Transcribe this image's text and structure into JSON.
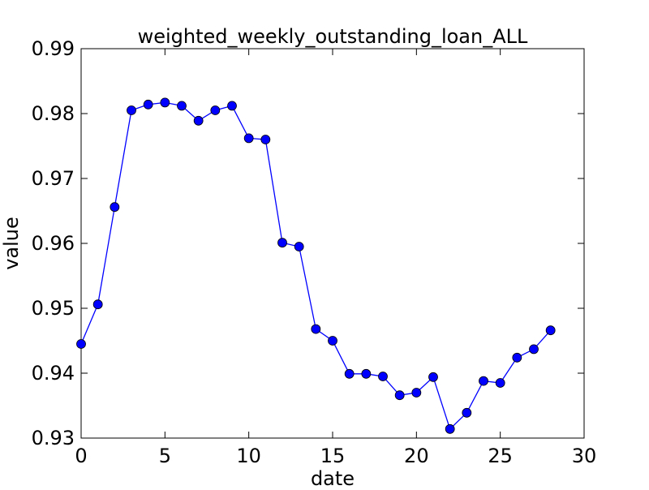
{
  "chart_data": {
    "type": "line",
    "title": "weighted_weekly_outstanding_loan_ALL",
    "xlabel": "date",
    "ylabel": "value",
    "xlim": [
      0,
      30
    ],
    "ylim": [
      0.93,
      0.99
    ],
    "xticks": [
      0,
      5,
      10,
      15,
      20,
      25,
      30
    ],
    "yticks": [
      0.93,
      0.94,
      0.95,
      0.96,
      0.97,
      0.98,
      0.99
    ],
    "xtick_labels": [
      "0",
      "5",
      "10",
      "15",
      "20",
      "25",
      "30"
    ],
    "ytick_labels": [
      "0.93",
      "0.94",
      "0.95",
      "0.96",
      "0.97",
      "0.98",
      "0.99"
    ],
    "grid": false,
    "legend": "none",
    "line_color": "#0000ff",
    "marker_color": "#0000ff",
    "series": [
      {
        "x": [
          0,
          1,
          2,
          3,
          4,
          5,
          6,
          7,
          8,
          9,
          10,
          11,
          12,
          13,
          14,
          15,
          16,
          17,
          18,
          19,
          20,
          21,
          22,
          23,
          24,
          25,
          26,
          27,
          28
        ],
        "values": [
          0.9445,
          0.9506,
          0.9656,
          0.9805,
          0.9814,
          0.9817,
          0.9812,
          0.9789,
          0.9805,
          0.9812,
          0.9762,
          0.976,
          0.9601,
          0.9595,
          0.9468,
          0.945,
          0.9399,
          0.9399,
          0.9395,
          0.9366,
          0.937,
          0.9394,
          0.9314,
          0.9339,
          0.9388,
          0.9385,
          0.9424,
          0.9437,
          0.9466
        ]
      }
    ]
  }
}
